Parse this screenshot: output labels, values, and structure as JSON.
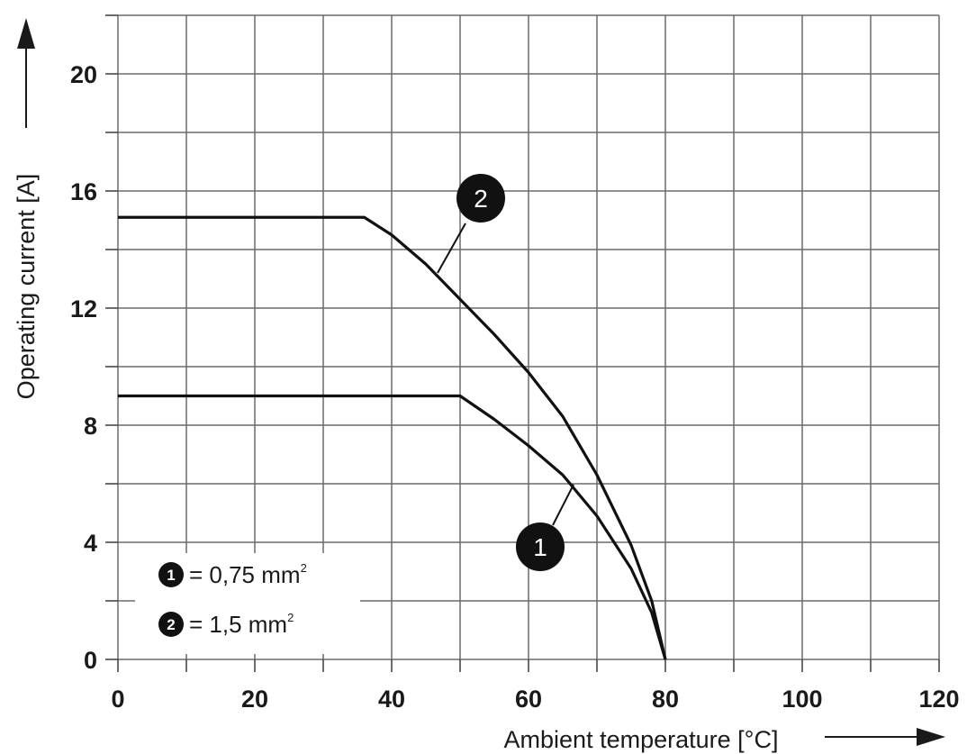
{
  "chart_data": {
    "type": "line",
    "xlabel": "Ambient temperature [°C]",
    "ylabel": "Operating current [A]",
    "xlim": [
      0,
      120
    ],
    "ylim": [
      0,
      22
    ],
    "xticks": [
      0,
      20,
      40,
      60,
      80,
      100,
      120
    ],
    "yticks": [
      0,
      4,
      8,
      12,
      16,
      20
    ],
    "grid": true,
    "series": [
      {
        "name": "1",
        "x": [
          0,
          10,
          20,
          30,
          40,
          50,
          55,
          60,
          65,
          70,
          75,
          78,
          80
        ],
        "y": [
          9,
          9,
          9,
          9,
          9,
          9,
          8.2,
          7.3,
          6.3,
          4.9,
          3.1,
          1.6,
          0
        ]
      },
      {
        "name": "2",
        "x": [
          0,
          10,
          20,
          30,
          36,
          40,
          45,
          50,
          55,
          60,
          65,
          70,
          75,
          78,
          80
        ],
        "y": [
          15.1,
          15.1,
          15.1,
          15.1,
          15.1,
          14.5,
          13.5,
          12.3,
          11.1,
          9.8,
          8.3,
          6.3,
          3.9,
          2.0,
          0
        ]
      }
    ],
    "legend": [
      {
        "badge": "1",
        "text": "= 0,75 mm",
        "sup": "2"
      },
      {
        "badge": "2",
        "text": "= 1,5 mm",
        "sup": "2"
      }
    ]
  }
}
